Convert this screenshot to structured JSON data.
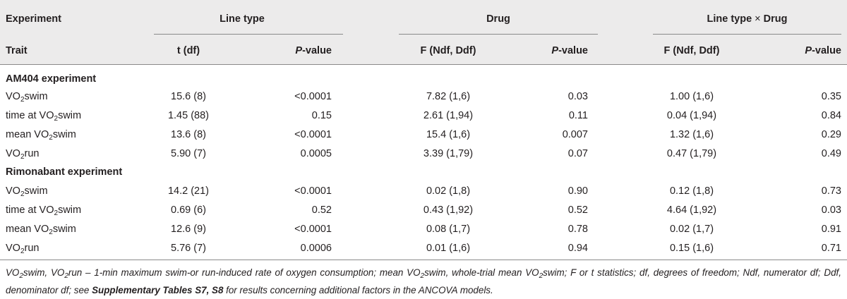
{
  "header": {
    "experiment": "Experiment",
    "trait": "Trait",
    "groups": {
      "line_type": "Line type",
      "drug": "Drug",
      "interaction_prefix": "Line type ",
      "interaction_times": "×",
      "interaction_suffix": " Drug"
    },
    "columns": {
      "t_df": "t (df)",
      "p_letter": "P",
      "p_rest": "-value",
      "f_ndf_ddf": "F (Ndf, Ddf)"
    }
  },
  "sections": [
    {
      "title": "AM404 experiment",
      "rows": [
        {
          "pre": "VO",
          "sub": "2",
          "post": "swim",
          "lt_t": "15.6 (8)",
          "lt_p": "<0.0001",
          "dr_f": "7.82 (1,6)",
          "dr_p": "0.03",
          "ix_f": "1.00 (1,6)",
          "ix_p": "0.35"
        },
        {
          "pre": "time at VO",
          "sub": "2",
          "post": "swim",
          "lt_t": "1.45 (88)",
          "lt_p": "0.15",
          "dr_f": "2.61 (1,94)",
          "dr_p": "0.11",
          "ix_f": "0.04 (1,94)",
          "ix_p": "0.84"
        },
        {
          "pre": "mean VO",
          "sub": "2",
          "post": "swim",
          "lt_t": "13.6 (8)",
          "lt_p": "<0.0001",
          "dr_f": "15.4 (1,6)",
          "dr_p": "0.007",
          "ix_f": "1.32 (1,6)",
          "ix_p": "0.29"
        },
        {
          "pre": "VO",
          "sub": "2",
          "post": "run",
          "lt_t": "5.90 (7)",
          "lt_p": "0.0005",
          "dr_f": "3.39 (1,79)",
          "dr_p": "0.07",
          "ix_f": "0.47 (1,79)",
          "ix_p": "0.49"
        }
      ]
    },
    {
      "title": "Rimonabant experiment",
      "rows": [
        {
          "pre": "VO",
          "sub": "2",
          "post": "swim",
          "lt_t": "14.2 (21)",
          "lt_p": "<0.0001",
          "dr_f": "0.02 (1,8)",
          "dr_p": "0.90",
          "ix_f": "0.12 (1,8)",
          "ix_p": "0.73"
        },
        {
          "pre": "time at VO",
          "sub": "2",
          "post": "swim",
          "lt_t": "0.69 (6)",
          "lt_p": "0.52",
          "dr_f": "0.43 (1,92)",
          "dr_p": "0.52",
          "ix_f": "4.64 (1,92)",
          "ix_p": "0.03"
        },
        {
          "pre": "mean VO",
          "sub": "2",
          "post": "swim",
          "lt_t": "12.6 (9)",
          "lt_p": "<0.0001",
          "dr_f": "0.08 (1,7)",
          "dr_p": "0.78",
          "ix_f": "0.02 (1,7)",
          "ix_p": "0.91"
        },
        {
          "pre": "VO",
          "sub": "2",
          "post": "run",
          "lt_t": "5.76 (7)",
          "lt_p": "0.0006",
          "dr_f": "0.01 (1,6)",
          "dr_p": "0.94",
          "ix_f": "0.15 (1,6)",
          "ix_p": "0.71"
        }
      ]
    }
  ],
  "footnote": {
    "part1_a": "VO",
    "part1_sub1": "2",
    "part1_b": "swim, VO",
    "part1_sub2": "2",
    "part1_c": "run – 1-min maximum swim-or run-induced rate of oxygen consumption; mean VO",
    "part1_sub3": "2",
    "part1_d": "swim, whole-trial mean VO",
    "part1_sub4": "2",
    "part1_e": "swim; F or t statistics; df, degrees of freedom; Ndf, numerator df; Ddf, denominator df; see ",
    "bold_ref": "Supplementary Tables S7, S8",
    "part2": " for results concerning additional factors in the ANCOVA models."
  }
}
